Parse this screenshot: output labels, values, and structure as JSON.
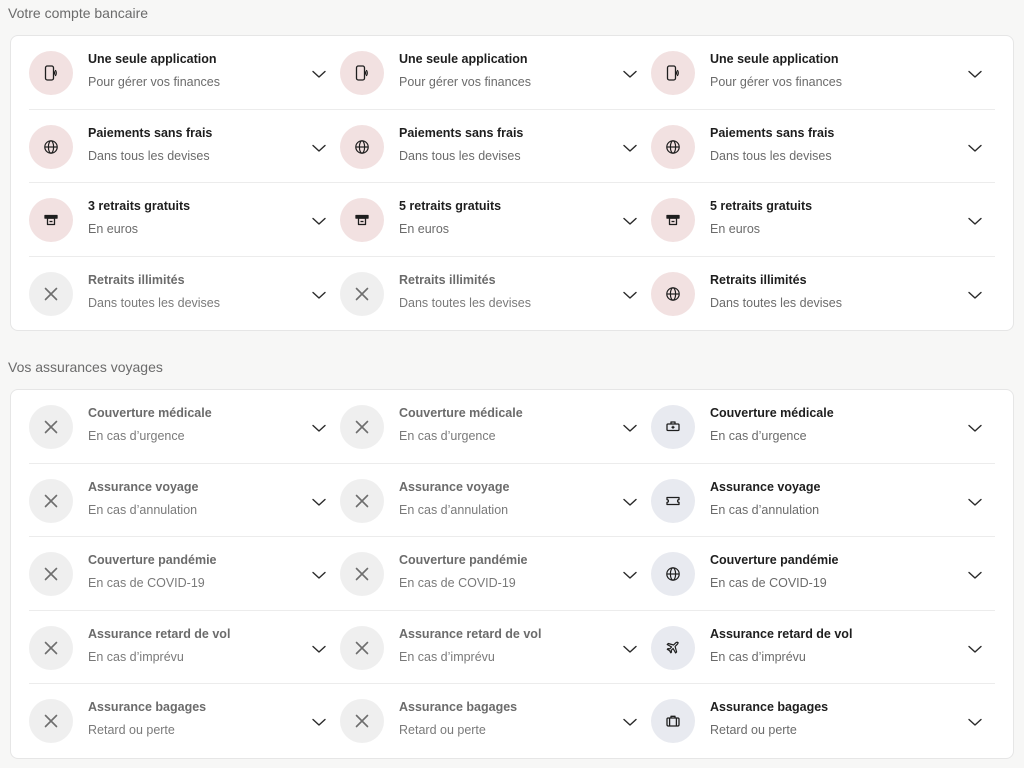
{
  "sections": [
    {
      "title": "Votre compte bancaire",
      "rows": [
        {
          "cells": [
            {
              "title": "Une seule application",
              "subtitle": "Pour gérer vos finances",
              "icon": "phone-icon",
              "style": "pink",
              "state": "included"
            },
            {
              "title": "Une seule application",
              "subtitle": "Pour gérer vos finances",
              "icon": "phone-icon",
              "style": "pink",
              "state": "included"
            },
            {
              "title": "Une seule application",
              "subtitle": "Pour gérer vos finances",
              "icon": "phone-icon",
              "style": "pink",
              "state": "included"
            }
          ]
        },
        {
          "cells": [
            {
              "title": "Paiements sans frais",
              "subtitle": "Dans tous les devises",
              "icon": "globe-icon",
              "style": "pink",
              "state": "included"
            },
            {
              "title": "Paiements sans frais",
              "subtitle": "Dans tous les devises",
              "icon": "globe-icon",
              "style": "pink",
              "state": "included"
            },
            {
              "title": "Paiements sans frais",
              "subtitle": "Dans tous les devises",
              "icon": "globe-icon",
              "style": "pink",
              "state": "included"
            }
          ]
        },
        {
          "cells": [
            {
              "title": "3 retraits gratuits",
              "subtitle": "En euros",
              "icon": "atm-icon",
              "style": "pink",
              "state": "included"
            },
            {
              "title": "5 retraits gratuits",
              "subtitle": "En euros",
              "icon": "atm-icon",
              "style": "pink",
              "state": "included"
            },
            {
              "title": "5 retraits gratuits",
              "subtitle": "En euros",
              "icon": "atm-icon",
              "style": "pink",
              "state": "included"
            }
          ]
        },
        {
          "cells": [
            {
              "title": "Retraits illimités",
              "subtitle": "Dans toutes les devises",
              "icon": "close-icon",
              "style": "grey",
              "state": "excluded"
            },
            {
              "title": "Retraits illimités",
              "subtitle": "Dans toutes les devises",
              "icon": "close-icon",
              "style": "grey",
              "state": "excluded"
            },
            {
              "title": "Retraits illimités",
              "subtitle": "Dans toutes les devises",
              "icon": "globe-icon",
              "style": "pink",
              "state": "included"
            }
          ]
        }
      ]
    },
    {
      "title": "Vos assurances voyages",
      "rows": [
        {
          "cells": [
            {
              "title": "Couverture médicale",
              "subtitle": "En cas d’urgence",
              "icon": "close-icon",
              "style": "grey",
              "state": "excluded"
            },
            {
              "title": "Couverture médicale",
              "subtitle": "En cas d’urgence",
              "icon": "close-icon",
              "style": "grey",
              "state": "excluded"
            },
            {
              "title": "Couverture médicale",
              "subtitle": "En cas d’urgence",
              "icon": "medical-kit-icon",
              "style": "blue",
              "state": "included"
            }
          ]
        },
        {
          "cells": [
            {
              "title": "Assurance voyage",
              "subtitle": "En cas d’annulation",
              "icon": "close-icon",
              "style": "grey",
              "state": "excluded"
            },
            {
              "title": "Assurance voyage",
              "subtitle": "En cas d’annulation",
              "icon": "close-icon",
              "style": "grey",
              "state": "excluded"
            },
            {
              "title": "Assurance voyage",
              "subtitle": "En cas d’annulation",
              "icon": "ticket-icon",
              "style": "blue",
              "state": "included"
            }
          ]
        },
        {
          "cells": [
            {
              "title": "Couverture pandémie",
              "subtitle": "En cas de COVID-19",
              "icon": "close-icon",
              "style": "grey",
              "state": "excluded"
            },
            {
              "title": "Couverture pandémie",
              "subtitle": "En cas de COVID-19",
              "icon": "close-icon",
              "style": "grey",
              "state": "excluded"
            },
            {
              "title": "Couverture pandémie",
              "subtitle": "En cas de COVID-19",
              "icon": "globe-icon",
              "style": "blue",
              "state": "included"
            }
          ]
        },
        {
          "cells": [
            {
              "title": "Assurance retard de vol",
              "subtitle": "En cas d’imprévu",
              "icon": "close-icon",
              "style": "grey",
              "state": "excluded"
            },
            {
              "title": "Assurance retard de vol",
              "subtitle": "En cas d’imprévu",
              "icon": "close-icon",
              "style": "grey",
              "state": "excluded"
            },
            {
              "title": "Assurance retard de vol",
              "subtitle": "En cas d’imprévu",
              "icon": "plane-icon",
              "style": "blue",
              "state": "included"
            }
          ]
        },
        {
          "cells": [
            {
              "title": "Assurance bagages",
              "subtitle": "Retard ou perte",
              "icon": "close-icon",
              "style": "grey",
              "state": "excluded"
            },
            {
              "title": "Assurance bagages",
              "subtitle": "Retard ou perte",
              "icon": "close-icon",
              "style": "grey",
              "state": "excluded"
            },
            {
              "title": "Assurance bagages",
              "subtitle": "Retard ou perte",
              "icon": "suitcase-icon",
              "style": "blue",
              "state": "included"
            }
          ]
        }
      ]
    }
  ],
  "colors": {
    "background": "#f7f7f6",
    "card": "#ffffff",
    "pink_icon_bg": "#f2e1e1",
    "grey_icon_bg": "#efefef",
    "blue_icon_bg": "#e8eaf0",
    "text_primary": "#1e1e1e",
    "text_muted": "#6b6b6b"
  }
}
